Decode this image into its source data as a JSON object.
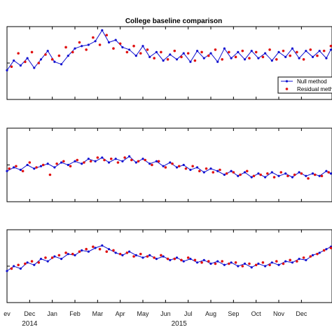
{
  "chart_data": {
    "type": "line",
    "title": "College baseline comparison",
    "legend": {
      "placement": "top-right",
      "entries": [
        "Null method",
        "Residual meth"
      ]
    },
    "colors": {
      "null_method": "#1010d0",
      "residual_method": "#e01010",
      "axes": "#000000"
    },
    "x_ticks": [
      "ev",
      "Dec",
      "Jan",
      "Feb",
      "Mar",
      "Apr",
      "May",
      "Jun",
      "Jul",
      "Aug",
      "Sep",
      "Oct",
      "Nov",
      "Dec"
    ],
    "x_tick_months": [
      0,
      1,
      2,
      3,
      4,
      5,
      6,
      7,
      8,
      9,
      10,
      11,
      12,
      13
    ],
    "year_labels": [
      {
        "text": "2014",
        "month": 1
      },
      {
        "text": "2015",
        "month": 7.6
      }
    ],
    "xlim": [
      0,
      14.35
    ],
    "panels": [
      {
        "ylim": [
          -3,
          3
        ],
        "null_method": [
          [
            0,
            -0.6
          ],
          [
            0.3,
            0.2
          ],
          [
            0.6,
            -0.2
          ],
          [
            0.9,
            0.4
          ],
          [
            1.2,
            -0.4
          ],
          [
            1.5,
            0.3
          ],
          [
            1.8,
            1.0
          ],
          [
            2.1,
            0.1
          ],
          [
            2.4,
            -0.1
          ],
          [
            2.7,
            0.6
          ],
          [
            3.0,
            1.2
          ],
          [
            3.3,
            1.4
          ],
          [
            3.6,
            1.5
          ],
          [
            3.9,
            1.8
          ],
          [
            4.2,
            2.7
          ],
          [
            4.5,
            1.7
          ],
          [
            4.8,
            1.9
          ],
          [
            5.1,
            1.3
          ],
          [
            5.4,
            1.1
          ],
          [
            5.7,
            0.6
          ],
          [
            6.0,
            1.4
          ],
          [
            6.3,
            0.5
          ],
          [
            6.6,
            0.9
          ],
          [
            6.9,
            0.2
          ],
          [
            7.2,
            0.7
          ],
          [
            7.5,
            0.3
          ],
          [
            7.8,
            0.8
          ],
          [
            8.1,
            0.1
          ],
          [
            8.4,
            1.0
          ],
          [
            8.7,
            0.4
          ],
          [
            9.0,
            0.8
          ],
          [
            9.3,
            0.1
          ],
          [
            9.6,
            1.2
          ],
          [
            9.9,
            0.4
          ],
          [
            10.2,
            0.9
          ],
          [
            10.5,
            0.3
          ],
          [
            10.8,
            1.0
          ],
          [
            11.1,
            0.4
          ],
          [
            11.4,
            0.8
          ],
          [
            11.7,
            0.2
          ],
          [
            12.0,
            0.9
          ],
          [
            12.3,
            0.5
          ],
          [
            12.6,
            1.2
          ],
          [
            12.9,
            0.4
          ],
          [
            13.2,
            1.0
          ],
          [
            13.5,
            0.5
          ],
          [
            13.8,
            1.0
          ],
          [
            14.1,
            0.4
          ],
          [
            14.3,
            1.1
          ]
        ],
        "residual_method": [
          [
            0.2,
            -0.3
          ],
          [
            0.5,
            0.8
          ],
          [
            0.8,
            0.1
          ],
          [
            1.1,
            0.9
          ],
          [
            1.4,
            0.0
          ],
          [
            1.7,
            0.7
          ],
          [
            2.0,
            0.3
          ],
          [
            2.3,
            0.6
          ],
          [
            2.6,
            1.3
          ],
          [
            2.9,
            0.9
          ],
          [
            3.2,
            1.7
          ],
          [
            3.5,
            1.1
          ],
          [
            3.8,
            2.1
          ],
          [
            4.1,
            1.5
          ],
          [
            4.4,
            2.3
          ],
          [
            4.7,
            1.2
          ],
          [
            5.0,
            1.6
          ],
          [
            5.3,
            0.9
          ],
          [
            5.6,
            1.4
          ],
          [
            5.9,
            0.8
          ],
          [
            6.2,
            1.1
          ],
          [
            6.5,
            0.4
          ],
          [
            6.8,
            0.9
          ],
          [
            7.1,
            0.3
          ],
          [
            7.4,
            1.0
          ],
          [
            7.7,
            0.5
          ],
          [
            8.0,
            0.8
          ],
          [
            8.3,
            0.2
          ],
          [
            8.6,
            0.9
          ],
          [
            8.9,
            0.6
          ],
          [
            9.2,
            1.1
          ],
          [
            9.5,
            0.3
          ],
          [
            9.8,
            0.9
          ],
          [
            10.1,
            0.5
          ],
          [
            10.4,
            1.0
          ],
          [
            10.7,
            0.4
          ],
          [
            11.0,
            0.9
          ],
          [
            11.3,
            0.5
          ],
          [
            11.6,
            1.1
          ],
          [
            11.9,
            0.3
          ],
          [
            12.2,
            1.0
          ],
          [
            12.5,
            0.6
          ],
          [
            12.8,
            0.9
          ],
          [
            13.1,
            0.3
          ],
          [
            13.4,
            1.1
          ],
          [
            13.7,
            0.6
          ],
          [
            14.0,
            1.0
          ],
          [
            14.3,
            1.4
          ]
        ]
      },
      {
        "ylim": [
          -3,
          3
        ],
        "null_method": [
          [
            0,
            -0.5
          ],
          [
            0.3,
            -0.2
          ],
          [
            0.6,
            -0.4
          ],
          [
            0.9,
            0.0
          ],
          [
            1.2,
            -0.3
          ],
          [
            1.5,
            -0.1
          ],
          [
            1.8,
            0.1
          ],
          [
            2.1,
            -0.2
          ],
          [
            2.4,
            0.2
          ],
          [
            2.7,
            0.0
          ],
          [
            3.0,
            0.3
          ],
          [
            3.3,
            0.1
          ],
          [
            3.6,
            0.5
          ],
          [
            3.9,
            0.3
          ],
          [
            4.2,
            0.6
          ],
          [
            4.5,
            0.2
          ],
          [
            4.8,
            0.5
          ],
          [
            5.1,
            0.3
          ],
          [
            5.4,
            0.7
          ],
          [
            5.7,
            0.2
          ],
          [
            6.0,
            0.5
          ],
          [
            6.3,
            0.1
          ],
          [
            6.6,
            0.3
          ],
          [
            6.9,
            -0.1
          ],
          [
            7.2,
            0.2
          ],
          [
            7.5,
            -0.2
          ],
          [
            7.8,
            0.0
          ],
          [
            8.1,
            -0.4
          ],
          [
            8.4,
            -0.2
          ],
          [
            8.7,
            -0.6
          ],
          [
            9.0,
            -0.3
          ],
          [
            9.3,
            -0.5
          ],
          [
            9.6,
            -0.8
          ],
          [
            9.9,
            -0.5
          ],
          [
            10.2,
            -0.9
          ],
          [
            10.5,
            -0.6
          ],
          [
            10.8,
            -1.0
          ],
          [
            11.1,
            -0.7
          ],
          [
            11.4,
            -1.0
          ],
          [
            11.7,
            -0.6
          ],
          [
            12.0,
            -0.9
          ],
          [
            12.3,
            -0.7
          ],
          [
            12.6,
            -1.0
          ],
          [
            12.9,
            -0.6
          ],
          [
            13.2,
            -0.9
          ],
          [
            13.5,
            -0.7
          ],
          [
            13.8,
            -0.9
          ],
          [
            14.1,
            -0.5
          ],
          [
            14.3,
            -0.7
          ]
        ],
        "residual_method": [
          [
            0.1,
            -0.3
          ],
          [
            0.4,
            -0.1
          ],
          [
            0.7,
            -0.5
          ],
          [
            1.0,
            0.2
          ],
          [
            1.3,
            -0.2
          ],
          [
            1.6,
            0.0
          ],
          [
            1.9,
            -0.8
          ],
          [
            2.2,
            0.1
          ],
          [
            2.5,
            0.3
          ],
          [
            2.8,
            -0.1
          ],
          [
            3.1,
            0.4
          ],
          [
            3.4,
            0.2
          ],
          [
            3.7,
            0.3
          ],
          [
            4.0,
            0.6
          ],
          [
            4.3,
            0.4
          ],
          [
            4.6,
            0.5
          ],
          [
            4.9,
            0.2
          ],
          [
            5.2,
            0.6
          ],
          [
            5.5,
            0.4
          ],
          [
            5.8,
            0.3
          ],
          [
            6.1,
            0.4
          ],
          [
            6.4,
            0.0
          ],
          [
            6.7,
            0.3
          ],
          [
            7.0,
            -0.2
          ],
          [
            7.3,
            0.1
          ],
          [
            7.6,
            -0.1
          ],
          [
            7.9,
            -0.3
          ],
          [
            8.2,
            -0.1
          ],
          [
            8.5,
            -0.5
          ],
          [
            8.8,
            -0.3
          ],
          [
            9.1,
            -0.6
          ],
          [
            9.4,
            -0.4
          ],
          [
            9.7,
            -0.7
          ],
          [
            10.0,
            -0.6
          ],
          [
            10.3,
            -0.8
          ],
          [
            10.6,
            -0.5
          ],
          [
            10.9,
            -0.9
          ],
          [
            11.2,
            -0.8
          ],
          [
            11.5,
            -0.7
          ],
          [
            11.8,
            -1.0
          ],
          [
            12.1,
            -0.6
          ],
          [
            12.4,
            -0.9
          ],
          [
            12.7,
            -0.8
          ],
          [
            13.0,
            -0.7
          ],
          [
            13.3,
            -1.1
          ],
          [
            13.6,
            -0.8
          ],
          [
            13.9,
            -0.9
          ],
          [
            14.2,
            -0.6
          ]
        ]
      },
      {
        "ylim": [
          -3,
          3
        ],
        "null_method": [
          [
            0,
            -0.4
          ],
          [
            0.3,
            0.0
          ],
          [
            0.6,
            -0.2
          ],
          [
            0.9,
            0.3
          ],
          [
            1.2,
            0.1
          ],
          [
            1.5,
            0.6
          ],
          [
            1.8,
            0.4
          ],
          [
            2.1,
            0.8
          ],
          [
            2.4,
            0.6
          ],
          [
            2.7,
            1.0
          ],
          [
            3.0,
            0.9
          ],
          [
            3.3,
            1.3
          ],
          [
            3.6,
            1.2
          ],
          [
            3.9,
            1.5
          ],
          [
            4.2,
            1.7
          ],
          [
            4.5,
            1.4
          ],
          [
            4.8,
            1.1
          ],
          [
            5.1,
            0.9
          ],
          [
            5.4,
            1.2
          ],
          [
            5.7,
            0.9
          ],
          [
            6.0,
            0.7
          ],
          [
            6.3,
            0.9
          ],
          [
            6.6,
            0.6
          ],
          [
            6.9,
            0.8
          ],
          [
            7.2,
            0.5
          ],
          [
            7.5,
            0.7
          ],
          [
            7.8,
            0.4
          ],
          [
            8.1,
            0.6
          ],
          [
            8.4,
            0.3
          ],
          [
            8.7,
            0.5
          ],
          [
            9.0,
            0.2
          ],
          [
            9.3,
            0.4
          ],
          [
            9.6,
            0.1
          ],
          [
            9.9,
            0.3
          ],
          [
            10.2,
            0.0
          ],
          [
            10.5,
            0.2
          ],
          [
            10.8,
            -0.1
          ],
          [
            11.1,
            0.2
          ],
          [
            11.4,
            0.0
          ],
          [
            11.7,
            0.3
          ],
          [
            12.0,
            0.1
          ],
          [
            12.3,
            0.4
          ],
          [
            12.6,
            0.3
          ],
          [
            12.9,
            0.6
          ],
          [
            13.2,
            0.5
          ],
          [
            13.5,
            0.9
          ],
          [
            13.8,
            1.1
          ],
          [
            14.1,
            1.4
          ],
          [
            14.3,
            1.6
          ]
        ],
        "residual_method": [
          [
            0.2,
            -0.2
          ],
          [
            0.5,
            0.1
          ],
          [
            0.8,
            0.2
          ],
          [
            1.1,
            0.4
          ],
          [
            1.4,
            0.3
          ],
          [
            1.7,
            0.7
          ],
          [
            2.0,
            0.7
          ],
          [
            2.3,
            0.9
          ],
          [
            2.6,
            1.1
          ],
          [
            2.9,
            1.0
          ],
          [
            3.2,
            1.2
          ],
          [
            3.5,
            1.4
          ],
          [
            3.8,
            1.6
          ],
          [
            4.1,
            1.4
          ],
          [
            4.4,
            1.2
          ],
          [
            4.7,
            1.3
          ],
          [
            5.0,
            1.0
          ],
          [
            5.3,
            1.1
          ],
          [
            5.6,
            0.8
          ],
          [
            5.9,
            1.0
          ],
          [
            6.2,
            0.8
          ],
          [
            6.5,
            0.7
          ],
          [
            6.8,
            0.9
          ],
          [
            7.1,
            0.6
          ],
          [
            7.4,
            0.6
          ],
          [
            7.7,
            0.5
          ],
          [
            8.0,
            0.7
          ],
          [
            8.3,
            0.5
          ],
          [
            8.6,
            0.3
          ],
          [
            8.9,
            0.4
          ],
          [
            9.2,
            0.2
          ],
          [
            9.5,
            0.4
          ],
          [
            9.8,
            0.2
          ],
          [
            10.1,
            0.3
          ],
          [
            10.4,
            0.0
          ],
          [
            10.7,
            0.2
          ],
          [
            11.0,
            0.1
          ],
          [
            11.3,
            0.3
          ],
          [
            11.6,
            0.1
          ],
          [
            11.9,
            0.4
          ],
          [
            12.2,
            0.2
          ],
          [
            12.5,
            0.5
          ],
          [
            12.8,
            0.4
          ],
          [
            13.1,
            0.7
          ],
          [
            13.4,
            0.8
          ],
          [
            13.7,
            1.0
          ],
          [
            14.0,
            1.3
          ],
          [
            14.3,
            1.5
          ]
        ]
      }
    ]
  }
}
